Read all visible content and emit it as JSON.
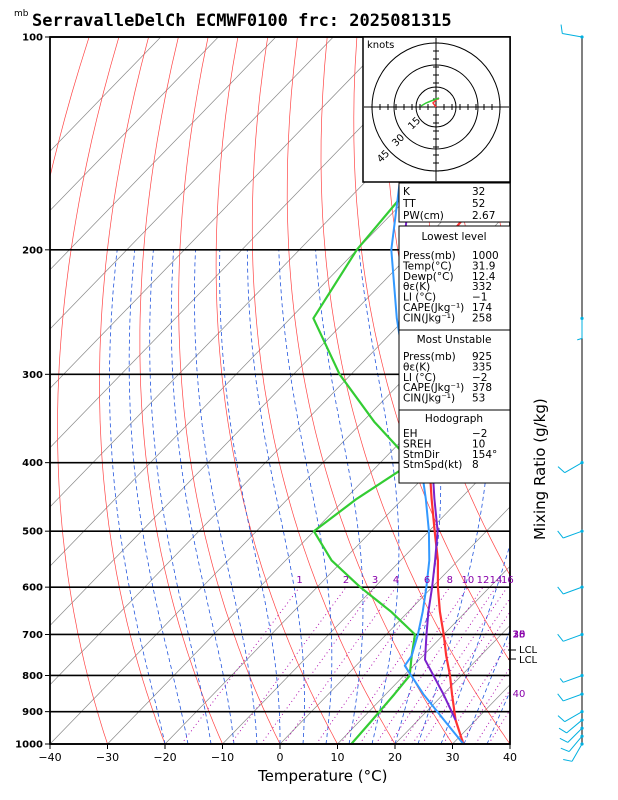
{
  "title": "SerravalleDelCh ECMWF0100 frc: 2025081315",
  "units_mb": "mb",
  "xlabel": "Temperature (°C)",
  "ylabel_right": "Mixing Ratio (g/kg)",
  "colors": {
    "temperature": "#ff3333",
    "dewpoint": "#33cc33",
    "parcel_lowest": "#3399ff",
    "parcel_mu": "#7a22cc",
    "dry_adiabat": "#ff4444",
    "moist_adiabat": "#2255dd",
    "isotherm": "#888888",
    "mixing_ratio": "#aa00aa",
    "wind": "#00b0e0"
  },
  "hodograph": {
    "units": "knots",
    "ring_labels": [
      "15",
      "30",
      "45"
    ]
  },
  "indices": {
    "K": {
      "label": "K",
      "value": "32"
    },
    "TT": {
      "label": "TT",
      "value": "52"
    },
    "PW": {
      "label": "PW(cm)",
      "value": "2.67"
    }
  },
  "lowest_level": {
    "heading": "Lowest level",
    "rows": [
      {
        "label": "Press(mb)",
        "value": "1000"
      },
      {
        "label": "Temp(°C)",
        "value": "31.9"
      },
      {
        "label": "Dewp(°C)",
        "value": "12.4"
      },
      {
        "label": "θε(K)",
        "value": "332"
      },
      {
        "label": "LI (°C)",
        "value": "−1"
      },
      {
        "label": "CAPE(Jkg⁻¹)",
        "value": "174"
      },
      {
        "label": "CIN(Jkg⁻¹)",
        "value": "258"
      }
    ]
  },
  "most_unstable": {
    "heading": "Most Unstable",
    "rows": [
      {
        "label": "Press(mb)",
        "value": "925"
      },
      {
        "label": "θε(K)",
        "value": "335"
      },
      {
        "label": "LI (°C)",
        "value": "−2"
      },
      {
        "label": "CAPE(Jkg⁻¹)",
        "value": "378"
      },
      {
        "label": "CIN(Jkg⁻¹)",
        "value": "53"
      }
    ]
  },
  "hodograph_box": {
    "heading": "Hodograph",
    "rows": [
      {
        "label": "EH",
        "value": "−2"
      },
      {
        "label": "SREH",
        "value": "10"
      },
      {
        "label": "StmDir",
        "value": "154°"
      },
      {
        "label": "StmSpd(kt)",
        "value": "8"
      }
    ]
  },
  "lcl_labels": [
    "LCL",
    "LCL"
  ],
  "chart_data": {
    "type": "line",
    "title": "SerravalleDelCh ECMWF0100 frc: 2025081315",
    "xlabel": "Temperature (°C)",
    "ylabel": "mb",
    "xlim": [
      -40,
      40
    ],
    "ylim": [
      1000,
      100
    ],
    "x_ticks": [
      -40,
      -30,
      -20,
      -10,
      0,
      10,
      20,
      30,
      40
    ],
    "pressure_ticks": [
      1000,
      900,
      800,
      700,
      600,
      500,
      400,
      300,
      200,
      100
    ],
    "pressure_labels": [
      "1000",
      "900",
      "800",
      "700",
      "600",
      "500",
      "400",
      "300",
      "200",
      "100"
    ],
    "mixing_ratio_labels": [
      "1",
      "2",
      "3",
      "4",
      "6",
      "8",
      "10",
      "12",
      "14",
      "16",
      "18",
      "20",
      "25",
      "30",
      "35",
      "40"
    ],
    "series": [
      {
        "key": "temperature",
        "p": [
          1000,
          925,
          850,
          800,
          750,
          700,
          650,
          600,
          550,
          500,
          450,
          400,
          350,
          300,
          250,
          240,
          200,
          150,
          100
        ],
        "t": [
          31.9,
          26.5,
          21.5,
          18.0,
          14.0,
          10.0,
          5.5,
          1.0,
          -3.5,
          -9.0,
          -15.0,
          -21.5,
          -29.0,
          -38.5,
          -50.0,
          -52.0,
          -56.0,
          -58.0,
          -62.0
        ]
      },
      {
        "key": "dewpoint",
        "p": [
          1000,
          925,
          850,
          800,
          750,
          700,
          650,
          600,
          550,
          500,
          450,
          400,
          350,
          300,
          250,
          200,
          150,
          100
        ],
        "t": [
          12.4,
          12.0,
          11.5,
          11.0,
          8.0,
          5.0,
          -3.0,
          -12.5,
          -22.0,
          -30.0,
          -28.0,
          -24.5,
          -38.0,
          -52.0,
          -66.0,
          -70.0,
          -72.0,
          -80.0
        ]
      },
      {
        "key": "parcel_lowest",
        "p": [
          1000,
          925,
          850,
          775,
          750,
          700,
          650,
          600,
          550,
          500,
          450,
          400,
          350,
          300,
          250,
          200,
          150,
          110
        ],
        "t": [
          31.9,
          24.5,
          16.5,
          8.5,
          8.0,
          5.5,
          2.5,
          -1.0,
          -5.0,
          -10.0,
          -16.0,
          -23.0,
          -31.0,
          -40.5,
          -51.5,
          -64.0,
          -77.0,
          -91.0
        ]
      },
      {
        "key": "parcel_mu",
        "p": [
          925,
          850,
          760,
          700,
          650,
          600,
          550,
          500,
          450,
          400,
          350,
          300,
          250,
          200,
          150,
          100
        ],
        "t": [
          26.5,
          20.0,
          11.0,
          7.0,
          3.5,
          0.0,
          -4.0,
          -8.5,
          -14.5,
          -21.0,
          -29.0,
          -38.5,
          -49.5,
          -62.0,
          -75.0,
          -90.0
        ]
      }
    ],
    "wind_barbs": [
      {
        "p": 1000,
        "dir": 210,
        "spd": 10
      },
      {
        "p": 975,
        "dir": 220,
        "spd": 10
      },
      {
        "p": 950,
        "dir": 225,
        "spd": 10
      },
      {
        "p": 925,
        "dir": 230,
        "spd": 10
      },
      {
        "p": 900,
        "dir": 240,
        "spd": 10
      },
      {
        "p": 850,
        "dir": 250,
        "spd": 10
      },
      {
        "p": 800,
        "dir": 250,
        "spd": 5
      },
      {
        "p": 700,
        "dir": 250,
        "spd": 10
      },
      {
        "p": 600,
        "dir": 250,
        "spd": 10
      },
      {
        "p": 500,
        "dir": 250,
        "spd": 10
      },
      {
        "p": 400,
        "dir": 240,
        "spd": 10
      },
      {
        "p": 250,
        "dir": 180,
        "spd": 5
      },
      {
        "p": 100,
        "dir": 280,
        "spd": 10
      }
    ]
  }
}
